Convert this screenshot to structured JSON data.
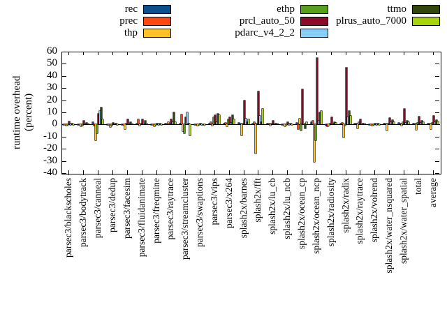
{
  "chart_data": {
    "type": "bar",
    "title": "",
    "ylabel_line1": "runtime overhead",
    "ylabel_line2": "(percent)",
    "ylim": [
      -40,
      60
    ],
    "ytick_step": 10,
    "yticks": [
      60,
      50,
      40,
      30,
      20,
      10,
      0,
      -10,
      -20,
      -30,
      -40
    ],
    "grid": false,
    "legend_position": "top-3-columns",
    "categories": [
      "parsec3/blackscholes",
      "parsec3/bodytrack",
      "parsec3/canneal",
      "parsec3/dedup",
      "parsec3/facesim",
      "parsec3/fluidanimate",
      "parsec3/freqmine",
      "parsec3/raytrace",
      "parsec3/streamcluster",
      "parsec3/swaptions",
      "parsec3/vips",
      "parsec3/x264",
      "splash2x/barnes",
      "splash2x/fft",
      "splash2x/lu_cb",
      "splash2x/lu_ncb",
      "splash2x/ocean_cp",
      "splash2x/ocean_ncp",
      "splash2x/radiosity",
      "splash2x/radix",
      "splash2x/raytrace",
      "splash2x/volrend",
      "splash2x/water_nsquared",
      "splash2x/water_spatial",
      "total",
      "average"
    ],
    "series": [
      {
        "name": "rec",
        "color": "#0b4f8e",
        "legend_col": 0,
        "legend_row": 0,
        "values": [
          -0.5,
          -0.5,
          2,
          -0.5,
          -0.5,
          0.5,
          -0.5,
          0.5,
          1,
          -0.5,
          1,
          1,
          1.5,
          1,
          0.5,
          -0.5,
          1.5,
          2,
          -1,
          1,
          0.5,
          -0.5,
          0.5,
          1.5,
          0.5,
          0.5
        ]
      },
      {
        "name": "prec",
        "color": "#ff4510",
        "legend_col": 0,
        "legend_row": 1,
        "values": [
          -0.5,
          -0.5,
          -1,
          -0.5,
          -0.5,
          4,
          -0.5,
          1,
          8.5,
          -0.5,
          2,
          1.5,
          1,
          2,
          0.5,
          -0.5,
          -4,
          3,
          -1.5,
          1.5,
          0.5,
          -0.5,
          0.5,
          0.5,
          1,
          1
        ]
      },
      {
        "name": "thp",
        "color": "#ffc328",
        "legend_col": 0,
        "legend_row": 2,
        "values": [
          -1,
          -1.5,
          -13,
          -2,
          -4,
          -1,
          -1.5,
          2,
          -5.5,
          -1,
          -1,
          -1.5,
          -9,
          -24,
          -1,
          -1.5,
          5,
          -31,
          -1,
          -11,
          -3,
          -1,
          -5,
          -1,
          -4.5,
          -4
        ]
      },
      {
        "name": "ethp",
        "color": "#5a9e1e",
        "legend_col": 1,
        "legend_row": 0,
        "values": [
          -0.5,
          -1,
          -7,
          -1,
          1,
          0.5,
          -0.5,
          1,
          -7.5,
          -0.5,
          6,
          4,
          1,
          1,
          0.5,
          -0.5,
          -5,
          -13,
          1,
          -1,
          2,
          -0.5,
          1,
          2,
          1.5,
          1.5
        ]
      },
      {
        "name": "prcl_auto_50",
        "color": "#8b0a28",
        "legend_col": 1,
        "legend_row": 1,
        "values": [
          2.5,
          3,
          9,
          1.5,
          4,
          4,
          1,
          4,
          6,
          0.5,
          8,
          6,
          20,
          27,
          3,
          2,
          29,
          55,
          6,
          47,
          4,
          1,
          5.5,
          13,
          6.5,
          7
        ]
      },
      {
        "name": "pdarc_v4_2_2",
        "color": "#87cefa",
        "legend_col": 1,
        "legend_row": 2,
        "values": [
          -0.5,
          1,
          11,
          0.5,
          1,
          0.5,
          -0.5,
          2,
          10,
          -0.5,
          2,
          1.5,
          5,
          7,
          0.5,
          -0.5,
          1,
          3,
          1,
          6,
          1,
          -0.5,
          2,
          1.5,
          1.5,
          2
        ]
      },
      {
        "name": "ttmo",
        "color": "#33470b",
        "legend_col": 2,
        "legend_row": 0,
        "values": [
          0.5,
          1.5,
          14,
          1,
          2,
          3,
          0.5,
          10,
          1,
          -0.5,
          9,
          8,
          2,
          2,
          1,
          0.5,
          -3,
          10,
          2,
          11,
          1,
          0.5,
          3.5,
          3,
          3,
          3.5
        ]
      },
      {
        "name": "plrus_auto_7000",
        "color": "#a6d408",
        "legend_col": 2,
        "legend_row": 1,
        "values": [
          -0.5,
          1,
          4,
          -0.5,
          1,
          0.5,
          -0.5,
          2,
          -9,
          -0.5,
          8,
          4.5,
          4,
          13,
          0.5,
          -0.5,
          2,
          11,
          1.5,
          7,
          0.5,
          -0.5,
          2,
          2,
          2,
          2.5
        ]
      }
    ]
  }
}
